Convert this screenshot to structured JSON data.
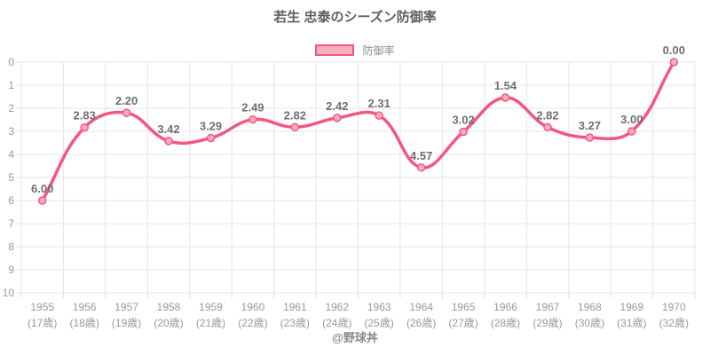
{
  "title": "若生 忠泰のシーズン防御率",
  "legend": {
    "label": "防御率"
  },
  "footer": "@野球丼",
  "colors": {
    "line": "#f4577d",
    "marker_fill": "#f9aebf",
    "grid": "#e5e5e5",
    "tick_mark": "#dcdcdc",
    "tick_text": "#999999",
    "data_label": "#6f6f6f",
    "title_text": "#5f5f5f",
    "footer_text": "#8a8a8a"
  },
  "chart_data": {
    "type": "line",
    "title": "若生 忠泰のシーズン防御率",
    "legend_entries": [
      "防御率"
    ],
    "legend_position": "top",
    "x": [
      "1955",
      "1956",
      "1957",
      "1958",
      "1959",
      "1960",
      "1961",
      "1962",
      "1963",
      "1964",
      "1965",
      "1966",
      "1967",
      "1968",
      "1969",
      "1970"
    ],
    "x_sub": [
      "(17歳)",
      "(18歳)",
      "(19歳)",
      "(20歳)",
      "(21歳)",
      "(22歳)",
      "(23歳)",
      "(24歳)",
      "(25歳)",
      "(26歳)",
      "(27歳)",
      "(28歳)",
      "(29歳)",
      "(30歳)",
      "(31歳)",
      "(32歳)"
    ],
    "series": [
      {
        "name": "防御率",
        "values": [
          6.0,
          2.83,
          2.2,
          3.42,
          3.29,
          2.49,
          2.82,
          2.42,
          2.31,
          4.57,
          3.02,
          1.54,
          2.82,
          3.27,
          3.0,
          0.0
        ]
      }
    ],
    "y_ticks": [
      0,
      1,
      2,
      3,
      4,
      5,
      6,
      7,
      8,
      9,
      10
    ],
    "ylim": [
      0,
      10
    ],
    "y_inverted": true,
    "grid": true
  }
}
